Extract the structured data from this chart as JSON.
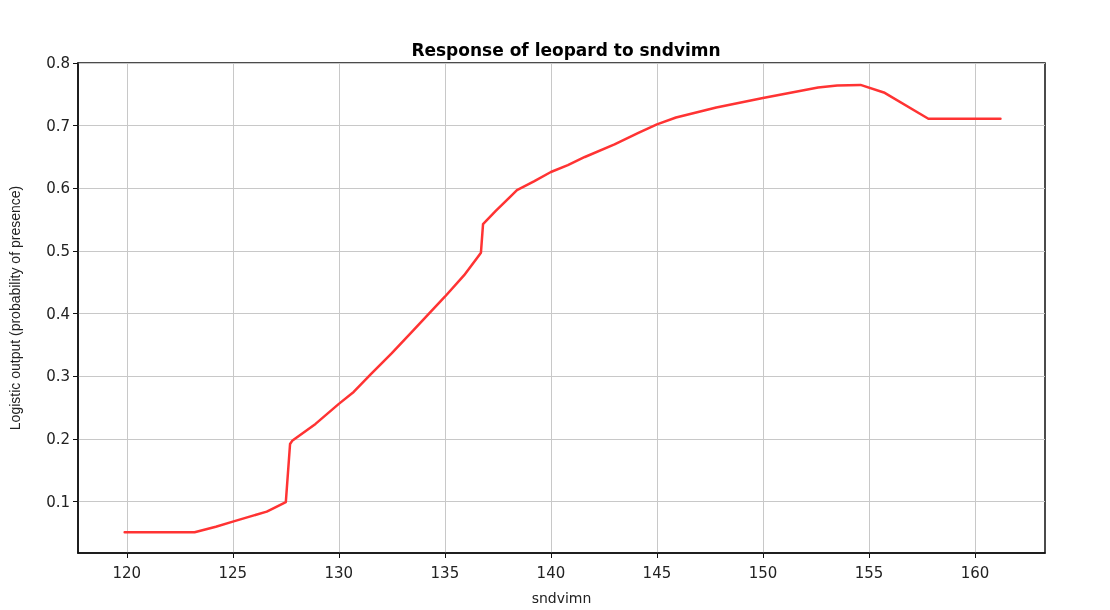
{
  "chart_data": {
    "type": "line",
    "title": "Response of leopard to sndvimn",
    "xlabel": "sndvimn",
    "ylabel": "Logistic output (probability of presence)",
    "x": [
      119.9,
      123.2,
      124.2,
      125.0,
      126.6,
      127.5,
      127.7,
      127.8,
      128.9,
      130.0,
      130.7,
      131.5,
      132.5,
      133.5,
      135.0,
      135.9,
      136.7,
      136.8,
      137.4,
      138.4,
      139.2,
      140.0,
      140.8,
      141.6,
      143.0,
      144.1,
      145.0,
      145.9,
      147.8,
      150.0,
      152.6,
      153.5,
      154.6,
      155.7,
      157.8,
      161.2
    ],
    "series": [
      {
        "color": "#ff3333",
        "values": [
          0.051,
          0.051,
          0.06,
          0.068,
          0.084,
          0.099,
          0.192,
          0.197,
          0.224,
          0.256,
          0.275,
          0.303,
          0.337,
          0.373,
          0.427,
          0.461,
          0.497,
          0.543,
          0.564,
          0.597,
          0.611,
          0.626,
          0.637,
          0.65,
          0.67,
          0.688,
          0.702,
          0.713,
          0.729,
          0.744,
          0.761,
          0.764,
          0.765,
          0.753,
          0.711,
          0.711
        ]
      }
    ],
    "xlim": [
      117.7,
      163.3
    ],
    "ylim": [
      0.018,
      0.8
    ],
    "xticks": [
      120,
      125,
      130,
      135,
      140,
      145,
      150,
      155,
      160
    ],
    "yticks": [
      0.1,
      0.2,
      0.3,
      0.4,
      0.5,
      0.6,
      0.7,
      0.8
    ],
    "grid": true,
    "marker": "none",
    "line_style": "solid"
  }
}
